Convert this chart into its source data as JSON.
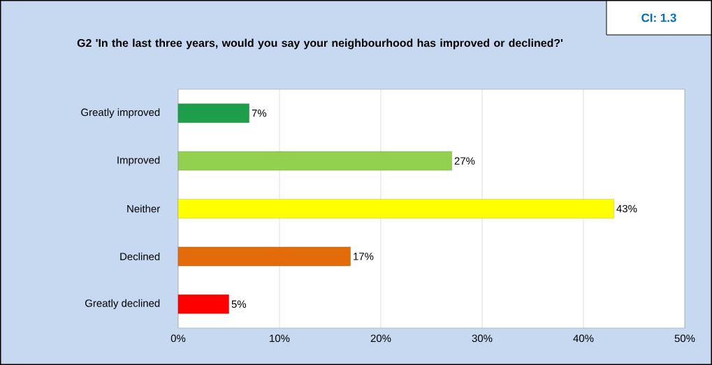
{
  "chart_data": {
    "type": "bar",
    "orientation": "horizontal",
    "title": "G2 'In the last three years, would you say your neighbourhood has improved or declined?'",
    "categories": [
      "Greatly improved",
      "Improved",
      "Neither",
      "Declined",
      "Greatly declined"
    ],
    "values": [
      7,
      27,
      43,
      17,
      5
    ],
    "colors": [
      "#1e9e4a",
      "#92d050",
      "#ffff00",
      "#e36c0a",
      "#ff0000"
    ],
    "value_labels": [
      "7%",
      "27%",
      "43%",
      "17%",
      "5%"
    ],
    "xlim": [
      0,
      50
    ],
    "xticks": [
      {
        "value": 0,
        "label": "0%"
      },
      {
        "value": 10,
        "label": "10%"
      },
      {
        "value": 20,
        "label": "20%"
      },
      {
        "value": 30,
        "label": "30%"
      },
      {
        "value": 40,
        "label": "40%"
      },
      {
        "value": 50,
        "label": "50%"
      }
    ],
    "grid": "x",
    "annotations": [
      "CI: 1.3"
    ]
  }
}
